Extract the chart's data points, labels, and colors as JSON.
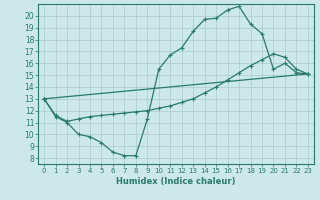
{
  "xlabel": "Humidex (Indice chaleur)",
  "bg_color": "#cce8e8",
  "line_color": "#2a7a6a",
  "grid_color": "#aacccc",
  "xlim": [
    -0.5,
    23.5
  ],
  "ylim": [
    7.5,
    21
  ],
  "xticks": [
    0,
    1,
    2,
    3,
    4,
    5,
    6,
    7,
    8,
    9,
    10,
    11,
    12,
    13,
    14,
    15,
    16,
    17,
    18,
    19,
    20,
    21,
    22,
    23
  ],
  "yticks": [
    8,
    9,
    10,
    11,
    12,
    13,
    14,
    15,
    16,
    17,
    18,
    19,
    20
  ],
  "line1_x": [
    0,
    1,
    2,
    3,
    4,
    5,
    6,
    7,
    8,
    9,
    10,
    11,
    12,
    13,
    14,
    15,
    16,
    17,
    18,
    19,
    20,
    21,
    22,
    23
  ],
  "line1_y": [
    13,
    11.5,
    11,
    10,
    9.8,
    9.3,
    8.5,
    8.2,
    8.2,
    11.3,
    15.5,
    16.7,
    17.3,
    18.7,
    19.7,
    19.8,
    20.5,
    20.8,
    19.3,
    18.5,
    15.5,
    16.0,
    15.2,
    15.1
  ],
  "line2_x": [
    0,
    1,
    2,
    3,
    4,
    5,
    6,
    7,
    8,
    9,
    10,
    11,
    12,
    13,
    14,
    15,
    16,
    17,
    18,
    19,
    20,
    21,
    22,
    23
  ],
  "line2_y": [
    13,
    11.6,
    11.1,
    11.3,
    11.5,
    11.6,
    11.7,
    11.8,
    11.9,
    12.0,
    12.2,
    12.4,
    12.7,
    13.0,
    13.5,
    14.0,
    14.6,
    15.2,
    15.8,
    16.3,
    16.8,
    16.5,
    15.5,
    15.1
  ],
  "line3_x": [
    0,
    23
  ],
  "line3_y": [
    13,
    15.1
  ]
}
